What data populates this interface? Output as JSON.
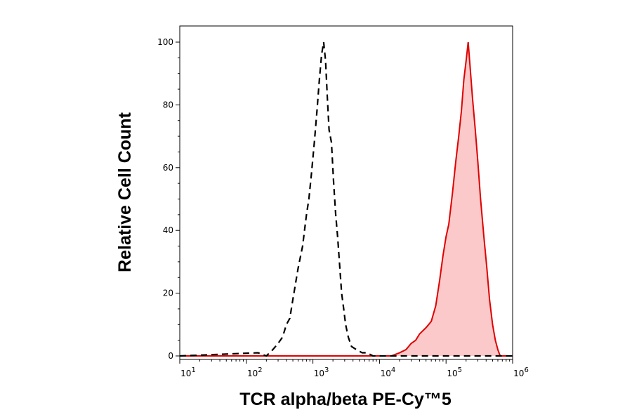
{
  "chart_data": {
    "type": "area",
    "title": "",
    "xlabel": "TCR alpha/beta PE-Cy™5",
    "ylabel": "Relative Cell Count",
    "xscale": "log",
    "xlim": [
      10,
      1000000
    ],
    "ylim": [
      0,
      100
    ],
    "grid": false,
    "legend": "none",
    "x_ticks": [
      {
        "base": "10",
        "exp": "1",
        "value": 10
      },
      {
        "base": "10",
        "exp": "2",
        "value": 100
      },
      {
        "base": "10",
        "exp": "3",
        "value": 1000
      },
      {
        "base": "10",
        "exp": "4",
        "value": 10000
      },
      {
        "base": "10",
        "exp": "5",
        "value": 100000
      },
      {
        "base": "10",
        "exp": "6",
        "value": 1000000
      }
    ],
    "y_ticks": [
      "0",
      "20",
      "40",
      "60",
      "80",
      "100"
    ],
    "series": [
      {
        "style": "dashed-line",
        "color": "#000000",
        "x": [
          10,
          150,
          200,
          250,
          300,
          350,
          400,
          450,
          500,
          600,
          700,
          800,
          870,
          950,
          1050,
          1150,
          1250,
          1350,
          1450,
          1550,
          1650,
          1750,
          1900,
          2050,
          2200,
          2350,
          2500,
          2700,
          2900,
          3100,
          3400,
          3800,
          4500,
          5500,
          6500,
          8000,
          1000000
        ],
        "y": [
          0,
          1,
          0,
          2,
          4,
          6,
          10,
          12,
          18,
          28,
          35,
          45,
          50,
          58,
          68,
          78,
          88,
          96,
          100,
          94,
          82,
          72,
          68,
          55,
          45,
          38,
          30,
          20,
          15,
          10,
          6,
          3,
          2,
          1,
          1,
          0,
          0
        ]
      },
      {
        "style": "filled",
        "color": "#e00000",
        "fill": "#fbc9c9",
        "x": [
          10,
          15000,
          20000,
          25000,
          30000,
          35000,
          40000,
          50000,
          60000,
          70000,
          80000,
          90000,
          100000,
          110000,
          125000,
          140000,
          155000,
          170000,
          185000,
          200000,
          215000,
          230000,
          250000,
          275000,
          300000,
          330000,
          370000,
          410000,
          450000,
          500000,
          550000,
          600000,
          650000,
          1000000
        ],
        "y": [
          0,
          0,
          1,
          2,
          4,
          5,
          7,
          9,
          11,
          16,
          24,
          32,
          38,
          42,
          52,
          62,
          70,
          78,
          88,
          94,
          100,
          92,
          82,
          72,
          62,
          50,
          38,
          28,
          18,
          10,
          5,
          2,
          0,
          0
        ]
      }
    ]
  }
}
